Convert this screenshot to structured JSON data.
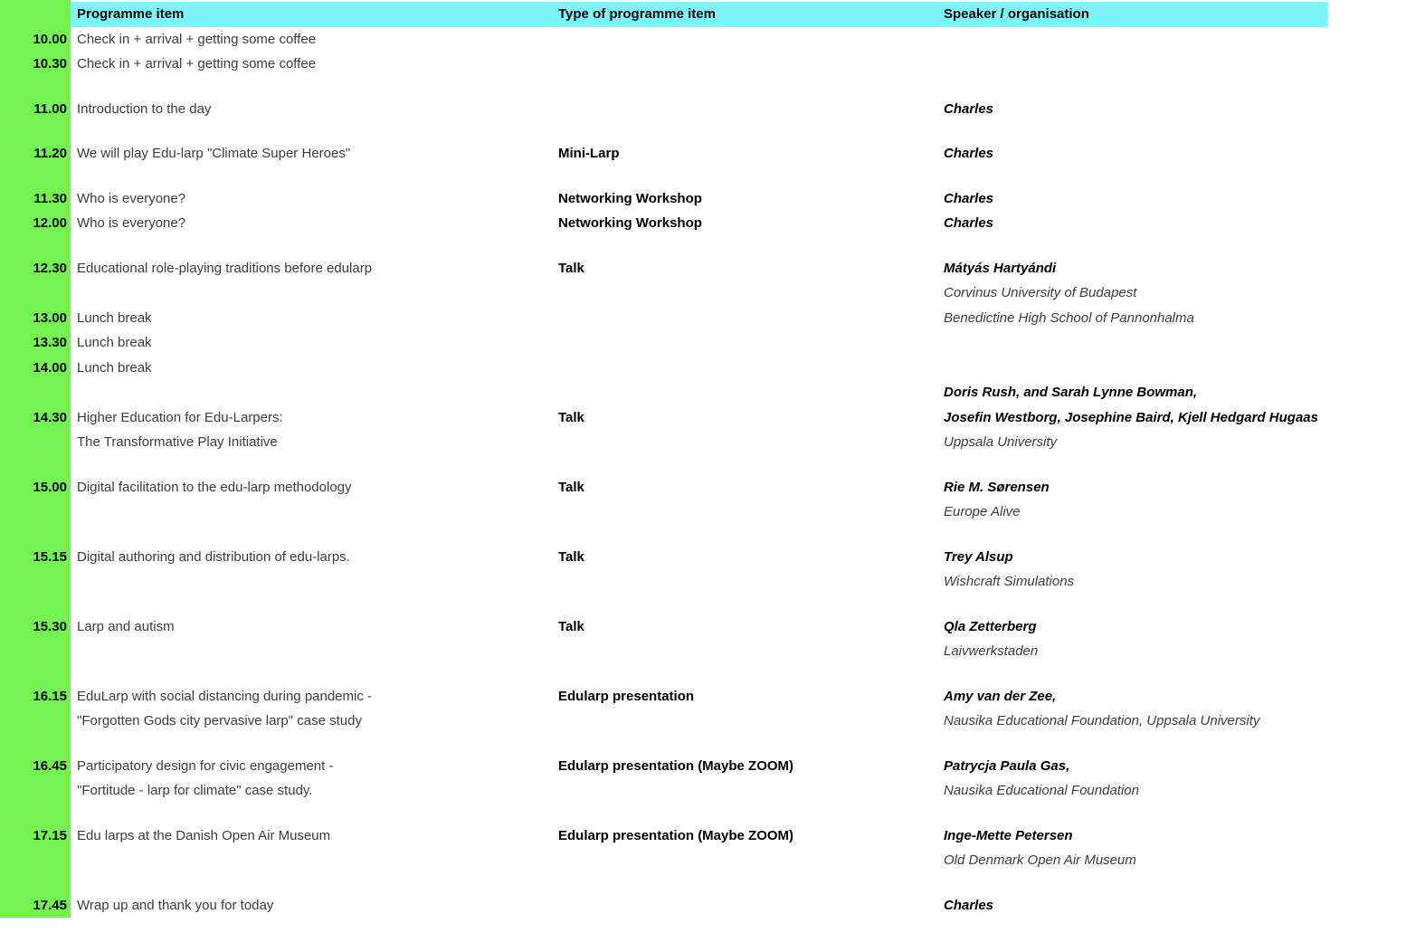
{
  "colors": {
    "time_column_bg": "#74f350",
    "header_bg": "#7df6fb",
    "regular_text": "#3c3c3c",
    "bold_text": "#000000"
  },
  "header": {
    "time": "",
    "programme_item": "Programme item",
    "type": "Type of programme item",
    "speaker": "Speaker / organisation"
  },
  "rows": [
    {
      "time": "10.00",
      "item": "Check in + arrival + getting some coffee",
      "type": "",
      "speaker": "",
      "speaker_bold": false
    },
    {
      "time": "10.30",
      "item": "Check in + arrival + getting some coffee",
      "type": "",
      "speaker": "",
      "speaker_bold": false
    },
    {
      "spacer": true
    },
    {
      "time": "11.00",
      "item": "Introduction to the day",
      "type": "",
      "speaker": "Charles",
      "speaker_bold": true
    },
    {
      "spacer": true
    },
    {
      "time": "11.20",
      "item": "We will play Edu-larp \"Climate Super Heroes\"",
      "type": "Mini-Larp",
      "speaker": "Charles",
      "speaker_bold": true
    },
    {
      "spacer": true
    },
    {
      "time": "11.30",
      "item": "Who is everyone?",
      "type": "Networking Workshop",
      "speaker": "Charles",
      "speaker_bold": true
    },
    {
      "time": "12.00",
      "item": "Who is everyone?",
      "type": "Networking Workshop",
      "speaker": "Charles",
      "speaker_bold": true
    },
    {
      "spacer": true
    },
    {
      "time": "12.30",
      "item": "Educational role-playing traditions before edularp",
      "type": "Talk",
      "speaker": "Mátyás Hartyándi",
      "speaker_bold": true
    },
    {
      "time": "",
      "item": "",
      "type": "",
      "speaker": "Corvinus University of Budapest",
      "speaker_bold": false
    },
    {
      "time": "13.00",
      "item": "Lunch break",
      "type": "",
      "speaker": "Benedictine High School of Pannonhalma",
      "speaker_bold": false
    },
    {
      "time": "13.30",
      "item": "Lunch break",
      "type": "",
      "speaker": "",
      "speaker_bold": false
    },
    {
      "time": "14.00",
      "item": "Lunch break",
      "type": "",
      "speaker": "",
      "speaker_bold": false
    },
    {
      "time": "",
      "item": "",
      "type": "",
      "speaker": "Doris Rush, and Sarah Lynne Bowman,",
      "speaker_bold": true
    },
    {
      "time": "14.30",
      "item": "Higher Education for Edu-Larpers:",
      "type": "Talk",
      "speaker": "Josefin Westborg, Josephine Baird, Kjell Hedgard Hugaas",
      "speaker_bold": true
    },
    {
      "time": "",
      "item": "The Transformative Play Initiative",
      "type": "",
      "speaker": "Uppsala University",
      "speaker_bold": false
    },
    {
      "spacer": true
    },
    {
      "time": "15.00",
      "item": "Digital facilitation to the edu-larp methodology",
      "type": "Talk",
      "speaker": "Rie M. Sørensen",
      "speaker_bold": true
    },
    {
      "time": "",
      "item": "",
      "type": "",
      "speaker": "Europe Alive",
      "speaker_bold": false
    },
    {
      "spacer": true
    },
    {
      "time": "15.15",
      "item": "Digital authoring and distribution of edu-larps.",
      "type": "Talk",
      "speaker": "Trey Alsup",
      "speaker_bold": true
    },
    {
      "time": "",
      "item": "",
      "type": "",
      "speaker": "Wishcraft Simulations",
      "speaker_bold": false
    },
    {
      "spacer": true
    },
    {
      "time": "15.30",
      "item": "Larp and autism",
      "type": "Talk",
      "speaker": "Qla Zetterberg",
      "speaker_bold": true
    },
    {
      "time": "",
      "item": "",
      "type": "",
      "speaker": "Laivwerkstaden",
      "speaker_bold": false
    },
    {
      "spacer": true
    },
    {
      "time": "16.15",
      "item": "EduLarp with social distancing during pandemic -",
      "type": "Edularp presentation",
      "speaker": "Amy van der Zee,",
      "speaker_bold": true
    },
    {
      "time": "",
      "item": "\"Forgotten Gods city pervasive larp\" case study",
      "type": "",
      "speaker": "Nausika Educational Foundation, Uppsala University",
      "speaker_bold": false
    },
    {
      "spacer": true
    },
    {
      "time": "16.45",
      "item": "Participatory design for civic engagement -",
      "type": "Edularp presentation (Maybe ZOOM)",
      "speaker": "Patrycja Paula Gas,",
      "speaker_bold": true
    },
    {
      "time": "",
      "item": "\"Fortitude - larp for climate\" case study.",
      "type": "",
      "speaker": "Nausika Educational Foundation",
      "speaker_bold": false
    },
    {
      "spacer": true
    },
    {
      "time": "17.15",
      "item": "Edu larps at the Danish Open Air Museum",
      "type": "Edularp presentation (Maybe ZOOM)",
      "speaker": "Inge-Mette Petersen",
      "speaker_bold": true
    },
    {
      "time": "",
      "item": "",
      "type": "",
      "speaker": "Old Denmark Open Air Museum",
      "speaker_bold": false
    },
    {
      "spacer": true
    },
    {
      "time": "17.45",
      "item": "Wrap up and thank you for today",
      "type": "",
      "speaker": "Charles",
      "speaker_bold": true
    }
  ]
}
